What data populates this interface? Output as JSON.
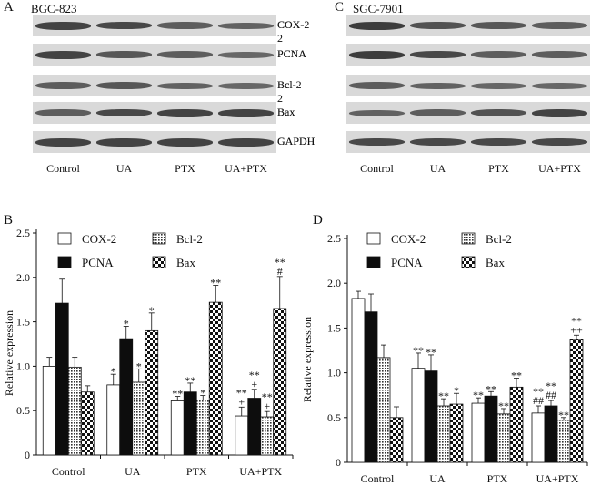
{
  "panels": {
    "A": {
      "letter": "A",
      "cell_line": "BGC-823"
    },
    "C": {
      "letter": "C",
      "cell_line": "SGC-7901"
    },
    "B": {
      "letter": "B"
    },
    "D": {
      "letter": "D"
    }
  },
  "blot_rows": [
    "COX-2",
    "PCNA",
    "Bcl-2",
    "Bax",
    "GAPDH"
  ],
  "groups": [
    "Control",
    "UA",
    "PTX",
    "UA+PTX"
  ],
  "colors": {
    "blot_bg": "#d9d9d9",
    "band": "#2a2a2a",
    "ink": "#111111"
  },
  "blot_intensity": {
    "A": [
      [
        0.85,
        0.8,
        0.6,
        0.55
      ],
      [
        0.85,
        0.65,
        0.6,
        0.5
      ],
      [
        0.6,
        0.65,
        0.55,
        0.5
      ],
      [
        0.6,
        0.8,
        0.85,
        0.85
      ],
      [
        0.85,
        0.85,
        0.85,
        0.85
      ]
    ],
    "C": [
      [
        0.9,
        0.7,
        0.65,
        0.6
      ],
      [
        0.9,
        0.8,
        0.6,
        0.6
      ],
      [
        0.6,
        0.55,
        0.5,
        0.5
      ],
      [
        0.55,
        0.6,
        0.7,
        0.85
      ],
      [
        0.8,
        0.8,
        0.8,
        0.8
      ]
    ]
  },
  "legend": [
    "COX-2",
    "Bcl-2",
    "PCNA",
    "Bax"
  ],
  "chart_data": [
    {
      "type": "bar",
      "panel": "B",
      "ylabel": "Relative expression",
      "ylim": [
        0,
        2.5
      ],
      "yticks": [
        "0",
        "0.5",
        "1.0",
        "1.5",
        "2.0",
        "2.5"
      ],
      "categories": [
        "Control",
        "UA",
        "PTX",
        "UA+PTX"
      ],
      "series": [
        {
          "name": "COX-2",
          "values": [
            1.0,
            0.79,
            0.61,
            0.44
          ],
          "errors": [
            0.1,
            0.12,
            0.05,
            0.1
          ]
        },
        {
          "name": "PCNA",
          "values": [
            1.71,
            1.31,
            0.71,
            0.64
          ],
          "errors": [
            0.27,
            0.14,
            0.1,
            0.1
          ]
        },
        {
          "name": "Bcl-2",
          "values": [
            0.99,
            0.82,
            0.62,
            0.43
          ],
          "errors": [
            0.11,
            0.15,
            0.05,
            0.06
          ]
        },
        {
          "name": "Bax",
          "values": [
            0.71,
            1.4,
            1.72,
            1.65
          ],
          "errors": [
            0.07,
            0.2,
            0.19,
            0.36
          ]
        }
      ],
      "annotations": [
        {
          "group": 1,
          "series": 0,
          "text": "*"
        },
        {
          "group": 1,
          "series": 1,
          "text": "*"
        },
        {
          "group": 1,
          "series": 2,
          "text": "*"
        },
        {
          "group": 1,
          "series": 3,
          "text": "*"
        },
        {
          "group": 2,
          "series": 0,
          "text": "**"
        },
        {
          "group": 2,
          "series": 1,
          "text": "**"
        },
        {
          "group": 2,
          "series": 2,
          "text": "*"
        },
        {
          "group": 2,
          "series": 3,
          "text": "**"
        },
        {
          "group": 3,
          "series": 0,
          "text": "**"
        },
        {
          "group": 3,
          "series": 0,
          "text": "+",
          "line": 1
        },
        {
          "group": 3,
          "series": 1,
          "text": "**"
        },
        {
          "group": 3,
          "series": 1,
          "text": "+",
          "line": 1
        },
        {
          "group": 3,
          "series": 2,
          "text": "**"
        },
        {
          "group": 3,
          "series": 2,
          "text": "+",
          "line": 1
        },
        {
          "group": 3,
          "series": 3,
          "text": "**"
        },
        {
          "group": 3,
          "series": 3,
          "text": "#",
          "line": 1
        }
      ]
    },
    {
      "type": "bar",
      "panel": "D",
      "ylabel": "Relative expression",
      "ylim": [
        0,
        2.5
      ],
      "yticks": [
        "0",
        "0.5",
        "1.0",
        "1.5",
        "2.0",
        "2.5"
      ],
      "categories": [
        "Control",
        "UA",
        "PTX",
        "UA+PTX"
      ],
      "series": [
        {
          "name": "COX-2",
          "values": [
            1.83,
            1.05,
            0.66,
            0.55
          ],
          "errors": [
            0.08,
            0.17,
            0.06,
            0.08
          ]
        },
        {
          "name": "PCNA",
          "values": [
            1.68,
            1.02,
            0.74,
            0.63
          ],
          "errors": [
            0.2,
            0.18,
            0.05,
            0.06
          ]
        },
        {
          "name": "Bcl-2",
          "values": [
            1.17,
            0.63,
            0.54,
            0.47
          ],
          "errors": [
            0.14,
            0.08,
            0.06,
            0.03
          ]
        },
        {
          "name": "Bax",
          "values": [
            0.5,
            0.65,
            0.84,
            1.37
          ],
          "errors": [
            0.12,
            0.12,
            0.1,
            0.05
          ]
        }
      ],
      "annotations": [
        {
          "group": 1,
          "series": 0,
          "text": "**"
        },
        {
          "group": 1,
          "series": 1,
          "text": "**"
        },
        {
          "group": 1,
          "series": 2,
          "text": "**"
        },
        {
          "group": 1,
          "series": 3,
          "text": "*"
        },
        {
          "group": 2,
          "series": 0,
          "text": "**"
        },
        {
          "group": 2,
          "series": 1,
          "text": "**"
        },
        {
          "group": 2,
          "series": 2,
          "text": "**"
        },
        {
          "group": 2,
          "series": 3,
          "text": "**"
        },
        {
          "group": 3,
          "series": 0,
          "text": "**"
        },
        {
          "group": 3,
          "series": 0,
          "text": "##",
          "line": 1
        },
        {
          "group": 3,
          "series": 1,
          "text": "**"
        },
        {
          "group": 3,
          "series": 1,
          "text": "##",
          "line": 1
        },
        {
          "group": 3,
          "series": 2,
          "text": "**"
        },
        {
          "group": 3,
          "series": 3,
          "text": "**"
        },
        {
          "group": 3,
          "series": 3,
          "text": "++",
          "line": 1
        }
      ]
    }
  ]
}
